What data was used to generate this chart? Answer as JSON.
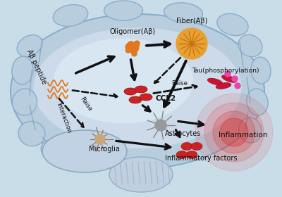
{
  "bg_color": "#c8dde8",
  "brain_outer_color": "#b0c8dc",
  "brain_inner_color": "#c8daea",
  "brain_light_color": "#d8e8f2",
  "cerebellum_color": "#c0d4e4",
  "labels": {
    "oligomer": "Oligomer(Aβ)",
    "fiber": "Fiber(Aβ)",
    "abeta": "Aβ peptide",
    "ccl2": "CCL2",
    "tau": "Tau(phosphorylation)",
    "astrocytes": "Astrocytes",
    "microglia": "Microglia",
    "inflammation": "Inflammation",
    "inflammatory_factors": "Inflammatory factors",
    "raise1": "Raise",
    "raise2": "Raise",
    "interaction": "Interaction"
  },
  "text_color": "#111111",
  "arrow_color": "#111111",
  "font_size": 7.0
}
